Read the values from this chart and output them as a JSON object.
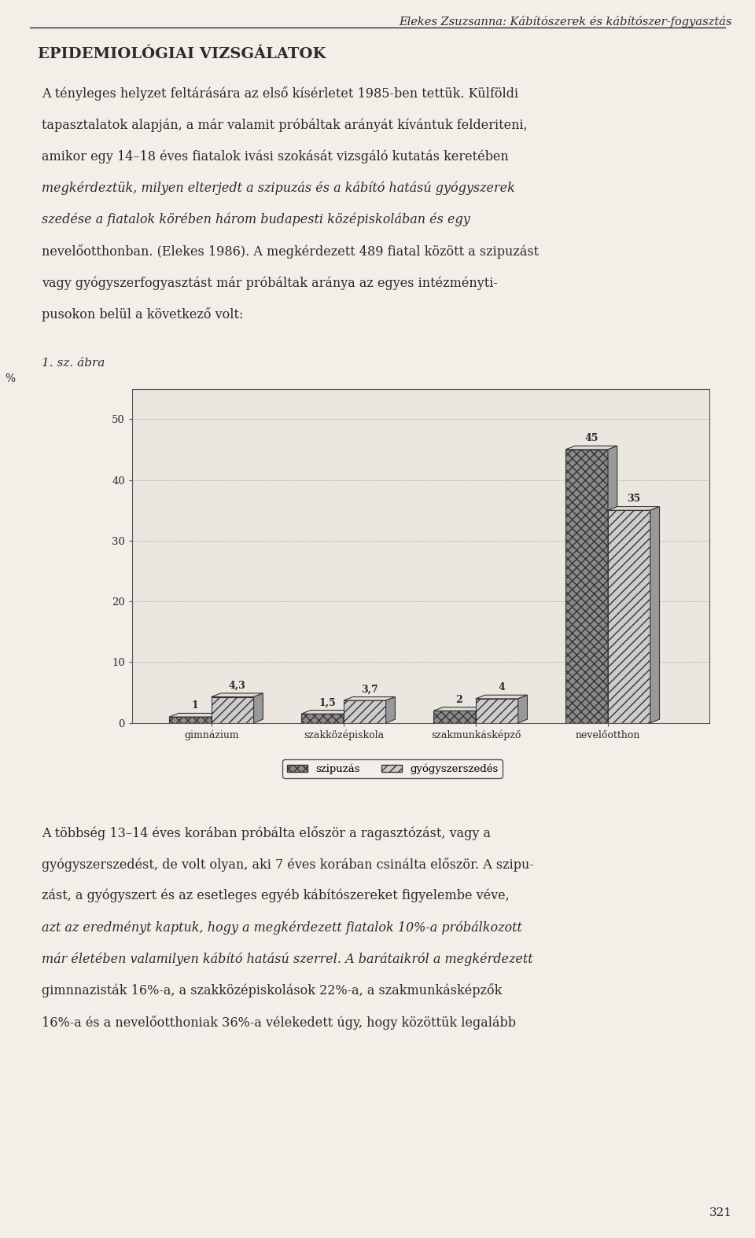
{
  "page_title": "Elekes Zsuzsanna: Kábítószerek és kábítószer-fogyasztás",
  "section_heading": "EPIDEMIOLÓGIAI VIZSGÁLATOK",
  "figure_label": "1. sz. ábra",
  "categories": [
    "gimnázium",
    "szakközépiskola",
    "szakmunkásképző",
    "nevelőotthon"
  ],
  "szipuzas": [
    1,
    1.5,
    2,
    45
  ],
  "gyogyszerszedes": [
    4.3,
    3.7,
    4,
    35
  ],
  "ylabel": "%",
  "yticks": [
    0,
    10,
    20,
    30,
    40,
    50
  ],
  "ylim": [
    0,
    55
  ],
  "bar_width": 0.32,
  "szipuzas_color": "#7a7a7a",
  "gyogyszer_color": "#cccccc",
  "szipuzas_label": "szipuzás",
  "gyogyszer_label": "gyógyszerszedés",
  "bar_values_szipuzas": [
    "1",
    "1,5",
    "2",
    "45"
  ],
  "bar_values_gyogyszer": [
    "4,3",
    "3,7",
    "4",
    "35"
  ],
  "page_number": "321",
  "bg_color": "#f2efe9",
  "text_color": "#2a2a2a",
  "chart_bg": "#ebe7e0",
  "para1_lines": [
    "A tényleges helyzet feltárására az első kísérletet 1985-ben tettük. Külföldi",
    "tapasztalatok alapján, a már valamit próbáltak arányát kívántuk felderiteni,",
    "amikor egy 14–18 éves fiatalok ivási szokását vizsgáló kutatás keretében",
    "megkérdeztük, milyen elterjedt a szipuzás és a kábító hatású gyógyszerek",
    "szedése a fiatalok körében három budapesti középiskolában és egy",
    "nevelőotthonban. (Elekes 1986). A megkérdezett 489 fiatal között a szipuzást",
    "vagy gyógyszerfogyasztást már próbáltak aránya az egyes intézményti-",
    "pusokon belül a következő volt:"
  ],
  "para1_italic": [
    3,
    4
  ],
  "para2_lines": [
    "A többség 13–14 éves korában próbálta először a ragasztózást, vagy a",
    "gyógyszerszedést, de volt olyan, aki 7 éves korában csinálta először. A szipu-",
    "zást, a gyógyszert és az esetleges egyéb kábítószereket figyelembe véve,",
    "azt az eredményt kaptuk, hogy a megkérdezett fiatalok 10%-a próbálkozott",
    "már életében valamilyen kábító hatású szerrel. A barátaikról a megkérdezett",
    "gimnnazisták 16%-a, a szakközépiskolások 22%-a, a szakmunkásképzők",
    "16%-a és a nevelőotthoniak 36%-a vélekedett úgy, hogy közöttük legalább"
  ],
  "para2_italic": [
    3,
    4
  ]
}
